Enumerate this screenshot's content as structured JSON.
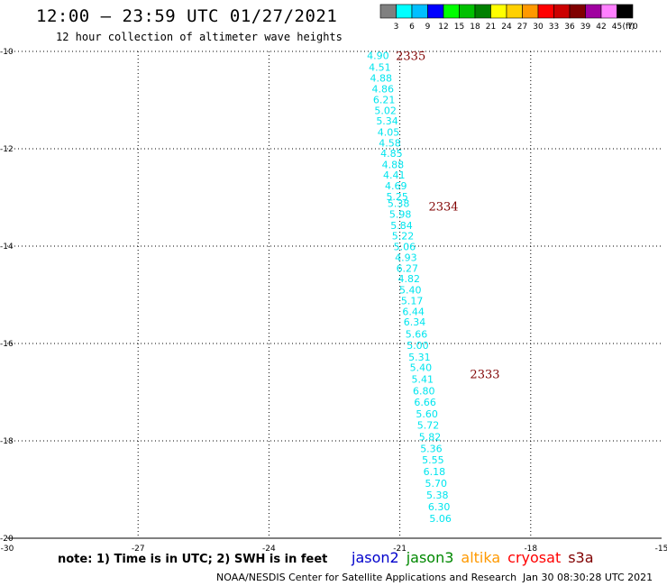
{
  "header": {
    "title": "12:00 — 23:59 UTC 01/27/2021",
    "subtitle": "12 hour collection of altimeter wave heights"
  },
  "color_legend": {
    "bins": [
      {
        "label": "3",
        "color": "#808080"
      },
      {
        "label": "6",
        "color": "#00ffff"
      },
      {
        "label": "9",
        "color": "#00bfff"
      },
      {
        "label": "12",
        "color": "#0000ff"
      },
      {
        "label": "15",
        "color": "#00ff00"
      },
      {
        "label": "18",
        "color": "#00c000"
      },
      {
        "label": "21",
        "color": "#008000"
      },
      {
        "label": "24",
        "color": "#ffff00"
      },
      {
        "label": "27",
        "color": "#ffd000"
      },
      {
        "label": "30",
        "color": "#ff9900"
      },
      {
        "label": "33",
        "color": "#ff0000"
      },
      {
        "label": "36",
        "color": "#cc0000"
      },
      {
        "label": "39",
        "color": "#800000"
      },
      {
        "label": "42",
        "color": "#a000a0"
      },
      {
        "label": "45",
        "color": "#ff80ff"
      },
      {
        "label": "70",
        "color": "#000000"
      }
    ],
    "unit": "(ft)"
  },
  "chart_data": {
    "type": "scatter",
    "xlim": [
      -30,
      -15
    ],
    "ylim": [
      -20,
      -10
    ],
    "x_ticks": [
      "-30",
      "-27",
      "-24",
      "-21",
      "-18",
      "-15"
    ],
    "y_ticks": [
      "-10",
      "-12",
      "-14",
      "-16",
      "-18",
      "-20"
    ],
    "grid": true,
    "label_color": "#00e5ee",
    "time_color": "#800000",
    "points": [
      {
        "lon": -21.5,
        "lat": -10.08,
        "label": "4.90"
      },
      {
        "lon": -21.46,
        "lat": -10.32,
        "label": "4.51"
      },
      {
        "lon": -21.43,
        "lat": -10.55,
        "label": "4.88"
      },
      {
        "lon": -21.39,
        "lat": -10.77,
        "label": "4.86"
      },
      {
        "lon": -21.36,
        "lat": -10.99,
        "label": "6.21"
      },
      {
        "lon": -21.33,
        "lat": -11.21,
        "label": "5.02"
      },
      {
        "lon": -21.29,
        "lat": -11.43,
        "label": "5.34"
      },
      {
        "lon": -21.26,
        "lat": -11.66,
        "label": "4.05"
      },
      {
        "lon": -21.23,
        "lat": -11.88,
        "label": "4.58"
      },
      {
        "lon": -21.19,
        "lat": -12.09,
        "label": "4.85"
      },
      {
        "lon": -21.16,
        "lat": -12.32,
        "label": "4.88"
      },
      {
        "lon": -21.13,
        "lat": -12.54,
        "label": "4.41"
      },
      {
        "lon": -21.09,
        "lat": -12.76,
        "label": "4.69"
      },
      {
        "lon": -21.06,
        "lat": -12.98,
        "label": "5.25"
      },
      {
        "lon": -21.03,
        "lat": -13.12,
        "label": "5.38"
      },
      {
        "lon": -20.99,
        "lat": -13.34,
        "label": "5.98"
      },
      {
        "lon": -20.96,
        "lat": -13.57,
        "label": "5.84"
      },
      {
        "lon": -20.93,
        "lat": -13.79,
        "label": "5.22"
      },
      {
        "lon": -20.89,
        "lat": -14.01,
        "label": "5.06"
      },
      {
        "lon": -20.86,
        "lat": -14.23,
        "label": "4.93"
      },
      {
        "lon": -20.83,
        "lat": -14.45,
        "label": "6.27"
      },
      {
        "lon": -20.79,
        "lat": -14.67,
        "label": "4.82"
      },
      {
        "lon": -20.76,
        "lat": -14.9,
        "label": "5.40"
      },
      {
        "lon": -20.72,
        "lat": -15.12,
        "label": "5.17"
      },
      {
        "lon": -20.69,
        "lat": -15.34,
        "label": "6.44"
      },
      {
        "lon": -20.66,
        "lat": -15.56,
        "label": "6.34"
      },
      {
        "lon": -20.62,
        "lat": -15.81,
        "label": "5.66"
      },
      {
        "lon": -20.59,
        "lat": -16.04,
        "label": "5.00"
      },
      {
        "lon": -20.55,
        "lat": -16.28,
        "label": "5.31"
      },
      {
        "lon": -20.52,
        "lat": -16.49,
        "label": "5.40"
      },
      {
        "lon": -20.48,
        "lat": -16.73,
        "label": "5.41"
      },
      {
        "lon": -20.45,
        "lat": -16.97,
        "label": "6.80"
      },
      {
        "lon": -20.42,
        "lat": -17.2,
        "label": "6.66"
      },
      {
        "lon": -20.38,
        "lat": -17.44,
        "label": "5.60"
      },
      {
        "lon": -20.35,
        "lat": -17.68,
        "label": "5.72"
      },
      {
        "lon": -20.31,
        "lat": -17.92,
        "label": "5.82"
      },
      {
        "lon": -20.28,
        "lat": -18.16,
        "label": "5.36"
      },
      {
        "lon": -20.24,
        "lat": -18.39,
        "label": "5.55"
      },
      {
        "lon": -20.21,
        "lat": -18.63,
        "label": "6.18"
      },
      {
        "lon": -20.17,
        "lat": -18.87,
        "label": "5.70"
      },
      {
        "lon": -20.14,
        "lat": -19.11,
        "label": "5.38"
      },
      {
        "lon": -20.1,
        "lat": -19.35,
        "label": "6.30"
      },
      {
        "lon": -20.07,
        "lat": -19.59,
        "label": "5.06"
      }
    ],
    "times": [
      {
        "lon": -20.75,
        "lat": -10.08,
        "label": "2335"
      },
      {
        "lon": -20.0,
        "lat": -13.18,
        "label": "2334"
      },
      {
        "lon": -19.05,
        "lat": -16.62,
        "label": "2333"
      }
    ]
  },
  "footer": {
    "note": "note:  1) Time is in UTC;  2) SWH is in feet",
    "satellites": [
      {
        "name": "jason2",
        "color": "#0000cc"
      },
      {
        "name": "jason3",
        "color": "#008800"
      },
      {
        "name": "altika",
        "color": "#ff9900"
      },
      {
        "name": "cryosat",
        "color": "#ff0000"
      },
      {
        "name": "s3a",
        "color": "#800000"
      }
    ],
    "credit": "NOAA/NESDIS Center for Satellite Applications and Research",
    "timestamp": "Jan 30 08:30:28 UTC 2021"
  }
}
